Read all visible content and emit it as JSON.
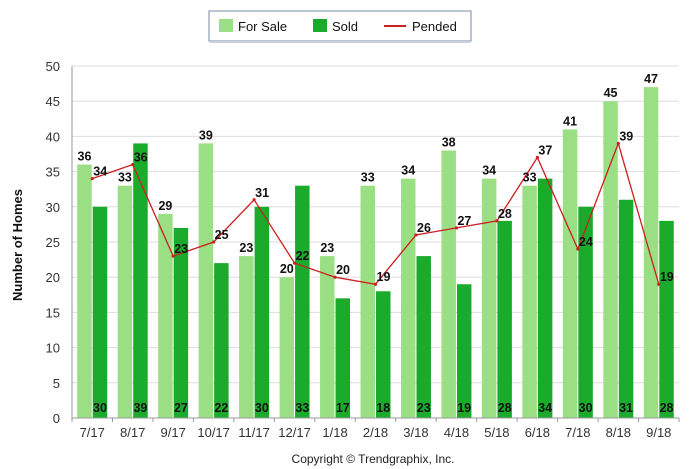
{
  "chart_data": {
    "type": "bar",
    "categories": [
      "7/17",
      "8/17",
      "9/17",
      "10/17",
      "11/17",
      "12/17",
      "1/18",
      "2/18",
      "3/18",
      "4/18",
      "5/18",
      "6/18",
      "7/18",
      "8/18",
      "9/18"
    ],
    "series": [
      {
        "name": "For Sale",
        "kind": "bar",
        "color": "#9bdf84",
        "values": [
          36,
          33,
          29,
          39,
          23,
          20,
          23,
          33,
          34,
          38,
          34,
          33,
          41,
          45,
          47
        ]
      },
      {
        "name": "Sold",
        "kind": "bar",
        "color": "#1aab2c",
        "values": [
          30,
          39,
          27,
          22,
          30,
          33,
          17,
          18,
          23,
          19,
          28,
          34,
          30,
          31,
          28
        ]
      },
      {
        "name": "Pended",
        "kind": "line",
        "color": "#cc1f1f",
        "values": [
          34,
          36,
          23,
          25,
          31,
          22,
          20,
          19,
          26,
          27,
          28,
          37,
          24,
          39,
          19
        ]
      }
    ],
    "ylabel": "Number of Homes",
    "xlabel": "",
    "ylim": [
      0,
      50
    ],
    "yticks": [
      0,
      5,
      10,
      15,
      20,
      25,
      30,
      35,
      40,
      45,
      50
    ],
    "grid": true,
    "legend_position": "top-center"
  },
  "footer": {
    "copyright": "Copyright © Trendgraphix, Inc."
  }
}
